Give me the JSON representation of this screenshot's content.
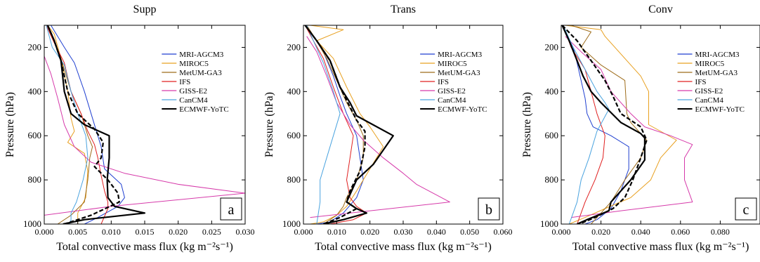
{
  "figure": {
    "panels": [
      {
        "title": "Supp",
        "letter": "a"
      },
      {
        "title": "Trans",
        "letter": "b"
      },
      {
        "title": "Conv",
        "letter": "c"
      }
    ]
  },
  "chart_data": [
    {
      "type": "line",
      "title": "Supp",
      "panel_label": "a",
      "xlabel": "Total convective mass flux (kg m⁻²s⁻¹)",
      "ylabel": "Pressure (hPa)",
      "xlim": [
        0,
        0.03
      ],
      "ylim": [
        1000,
        100
      ],
      "x_ticks": [
        "0.000",
        "0.005",
        "0.010",
        "0.015",
        "0.020",
        "0.025",
        "0.030"
      ],
      "y_ticks": [
        "200",
        "400",
        "600",
        "800",
        "1000"
      ],
      "legend_position": "top-right",
      "series": [
        {
          "name": "MRI-AGCM3",
          "color": "#1f3fd0",
          "style": "solid",
          "x": [
            0.001,
            0.002,
            0.003,
            0.0045,
            0.006,
            0.007,
            0.0085,
            0.009,
            0.0115,
            0.012,
            0.011,
            0.008,
            0.006
          ],
          "y": [
            100,
            150,
            200,
            270,
            400,
            500,
            650,
            750,
            820,
            880,
            920,
            970,
            1000
          ]
        },
        {
          "name": "MIROC5",
          "color": "#e8a020",
          "style": "solid",
          "x": [
            0.0005,
            0.0015,
            0.0025,
            0.0035,
            0.004,
            0.0045,
            0.0035,
            0.006,
            0.0065,
            0.0062,
            0.005,
            0.005
          ],
          "y": [
            100,
            140,
            250,
            400,
            520,
            580,
            630,
            680,
            760,
            880,
            950,
            1000
          ]
        },
        {
          "name": "MetUM-GA3",
          "color": "#9e6c1a",
          "style": "solid",
          "x": [
            0.0005,
            0.0015,
            0.0025,
            0.004,
            0.0055,
            0.0065,
            0.0072,
            0.0068,
            0.0065,
            0.006,
            0.004,
            0.002
          ],
          "y": [
            100,
            170,
            250,
            400,
            500,
            600,
            650,
            700,
            800,
            900,
            960,
            1000
          ]
        },
        {
          "name": "IFS",
          "color": "#e02020",
          "style": "solid",
          "x": [
            0.0003,
            0.0015,
            0.003,
            0.004,
            0.0055,
            0.0065,
            0.0075,
            0.008,
            0.0085,
            0.009,
            0.0095,
            0.0095,
            0.009,
            0.0085
          ],
          "y": [
            100,
            180,
            270,
            400,
            500,
            580,
            640,
            700,
            780,
            850,
            900,
            930,
            965,
            1000
          ]
        },
        {
          "name": "GISS-E2",
          "color": "#d63aaa",
          "style": "solid",
          "x": [
            0.0,
            0.001,
            0.002,
            0.003,
            0.0045,
            0.007,
            0.012,
            0.02,
            0.03,
            0.01,
            0.0
          ],
          "y": [
            240,
            320,
            430,
            550,
            650,
            720,
            770,
            820,
            860,
            920,
            960
          ]
        },
        {
          "name": "CanCM4",
          "color": "#4aa3df",
          "style": "solid",
          "x": [
            0.0003,
            0.0012,
            0.003,
            0.004,
            0.005,
            0.0062,
            0.0065,
            0.0058,
            0.0048,
            0.004,
            0.004,
            0.0038
          ],
          "y": [
            100,
            200,
            280,
            400,
            500,
            600,
            700,
            800,
            900,
            950,
            980,
            1000
          ]
        },
        {
          "name": "ECMWF-YoTC",
          "color": "#000000",
          "style": "solid",
          "x": [
            0.0005,
            0.0015,
            0.0025,
            0.003,
            0.004,
            0.006,
            0.0097,
            0.0097,
            0.0094,
            0.0095,
            0.0105,
            0.015,
            0.006,
            0.0028
          ],
          "y": [
            100,
            170,
            260,
            400,
            500,
            550,
            600,
            700,
            800,
            880,
            920,
            950,
            980,
            1000
          ]
        },
        {
          "name": "",
          "color": "#000000",
          "style": "dash",
          "x": [
            0.0005,
            0.0015,
            0.0025,
            0.0035,
            0.005,
            0.0075,
            0.0088,
            0.0085,
            0.0075,
            0.0095,
            0.011,
            0.0112,
            0.007,
            0.003
          ],
          "y": [
            100,
            170,
            260,
            400,
            500,
            570,
            630,
            700,
            740,
            800,
            860,
            900,
            960,
            1000
          ]
        }
      ]
    },
    {
      "type": "line",
      "title": "Trans",
      "panel_label": "b",
      "xlabel": "Total convective mass flux (kg m⁻²s⁻¹)",
      "ylabel": "Pressure (hPa)",
      "xlim": [
        0,
        0.06
      ],
      "ylim": [
        1000,
        100
      ],
      "x_ticks": [
        "0.000",
        "0.010",
        "0.020",
        "0.030",
        "0.040",
        "0.050",
        "0.060"
      ],
      "y_ticks": [
        "200",
        "400",
        "600",
        "800",
        "1000"
      ],
      "legend_position": "top-right",
      "series": [
        {
          "name": "MRI-AGCM3",
          "color": "#1f3fd0",
          "style": "solid",
          "x": [
            0.0005,
            0.003,
            0.006,
            0.009,
            0.011,
            0.013,
            0.016,
            0.017,
            0.018,
            0.016,
            0.012,
            0.008,
            0.004
          ],
          "y": [
            100,
            150,
            220,
            330,
            420,
            500,
            600,
            700,
            800,
            880,
            950,
            990,
            1000
          ]
        },
        {
          "name": "MIROC5",
          "color": "#e8a020",
          "style": "solid",
          "x": [
            0.002,
            0.012,
            0.004,
            0.009,
            0.013,
            0.017,
            0.02,
            0.024,
            0.02,
            0.016,
            0.013,
            0.01,
            0.006,
            0.002
          ],
          "y": [
            100,
            120,
            170,
            250,
            380,
            500,
            560,
            650,
            750,
            850,
            920,
            960,
            990,
            1000
          ]
        },
        {
          "name": "MetUM-GA3",
          "color": "#9e6c1a",
          "style": "solid",
          "x": [
            0.001,
            0.004,
            0.007,
            0.01,
            0.013,
            0.016,
            0.018,
            0.018,
            0.016,
            0.013,
            0.012,
            0.01,
            0.006
          ],
          "y": [
            100,
            170,
            250,
            350,
            450,
            530,
            600,
            700,
            800,
            880,
            920,
            960,
            1000
          ]
        },
        {
          "name": "IFS",
          "color": "#e02020",
          "style": "solid",
          "x": [
            0.0005,
            0.003,
            0.006,
            0.009,
            0.012,
            0.015,
            0.014,
            0.013,
            0.014,
            0.016,
            0.019,
            0.015,
            0.008
          ],
          "y": [
            100,
            170,
            250,
            380,
            500,
            600,
            700,
            800,
            880,
            920,
            950,
            980,
            1000
          ]
        },
        {
          "name": "GISS-E2",
          "color": "#d63aaa",
          "style": "solid",
          "x": [
            0.001,
            0.004,
            0.007,
            0.01,
            0.014,
            0.018,
            0.024,
            0.03,
            0.034,
            0.044,
            0.02,
            0.002
          ],
          "y": [
            150,
            220,
            330,
            450,
            550,
            620,
            700,
            770,
            820,
            900,
            940,
            970
          ]
        },
        {
          "name": "CanCM4",
          "color": "#4aa3df",
          "style": "solid",
          "x": [
            0.001,
            0.003,
            0.006,
            0.009,
            0.011,
            0.009,
            0.007,
            0.005,
            0.005,
            0.004
          ],
          "y": [
            100,
            170,
            270,
            400,
            500,
            600,
            700,
            800,
            900,
            1000
          ]
        },
        {
          "name": "ECMWF-YoTC",
          "color": "#000000",
          "style": "solid",
          "x": [
            0.0005,
            0.004,
            0.008,
            0.011,
            0.014,
            0.016,
            0.027,
            0.021,
            0.016,
            0.013,
            0.016,
            0.019,
            0.012,
            0.006
          ],
          "y": [
            100,
            170,
            260,
            380,
            450,
            510,
            600,
            730,
            800,
            900,
            930,
            950,
            980,
            1000
          ]
        },
        {
          "name": "",
          "color": "#000000",
          "style": "dash",
          "x": [
            0.0005,
            0.004,
            0.008,
            0.011,
            0.014,
            0.016,
            0.0185,
            0.0185,
            0.017,
            0.014,
            0.013,
            0.016,
            0.011,
            0.006
          ],
          "y": [
            100,
            170,
            260,
            380,
            470,
            530,
            580,
            650,
            760,
            850,
            900,
            930,
            970,
            1000
          ]
        }
      ]
    },
    {
      "type": "line",
      "title": "Conv",
      "panel_label": "c",
      "xlabel": "Total convective mass flux (kg m⁻²s⁻¹)",
      "ylabel": "Pressure (hPa)",
      "xlim": [
        0,
        0.1
      ],
      "ylim": [
        1000,
        100
      ],
      "x_ticks": [
        "0.000",
        "0.020",
        "0.040",
        "0.060",
        "0.080"
      ],
      "y_ticks": [
        "200",
        "400",
        "600",
        "800",
        "1000"
      ],
      "legend_position": "top-right",
      "series": [
        {
          "name": "MRI-AGCM3",
          "color": "#1f3fd0",
          "style": "solid",
          "x": [
            0.0005,
            0.003,
            0.006,
            0.008,
            0.01,
            0.012,
            0.013,
            0.016,
            0.025,
            0.034,
            0.034,
            0.03,
            0.025,
            0.018,
            0.012
          ],
          "y": [
            100,
            150,
            200,
            270,
            350,
            430,
            500,
            560,
            600,
            650,
            750,
            850,
            930,
            980,
            1000
          ]
        },
        {
          "name": "MIROC5",
          "color": "#e8a020",
          "style": "solid",
          "x": [
            0.002,
            0.02,
            0.022,
            0.033,
            0.04,
            0.044,
            0.044,
            0.058,
            0.05,
            0.045,
            0.035,
            0.022,
            0.012,
            0.004
          ],
          "y": [
            100,
            120,
            150,
            260,
            330,
            400,
            550,
            620,
            700,
            800,
            880,
            930,
            970,
            1000
          ]
        },
        {
          "name": "MetUM-GA3",
          "color": "#9e6c1a",
          "style": "solid",
          "x": [
            0.005,
            0.015,
            0.01,
            0.02,
            0.032,
            0.033,
            0.035,
            0.043,
            0.04,
            0.032,
            0.025,
            0.02,
            0.015
          ],
          "y": [
            100,
            130,
            200,
            280,
            350,
            500,
            540,
            620,
            700,
            800,
            900,
            950,
            1000
          ]
        },
        {
          "name": "IFS",
          "color": "#e02020",
          "style": "solid",
          "x": [
            0.001,
            0.005,
            0.012,
            0.015,
            0.018,
            0.02,
            0.022,
            0.021,
            0.017,
            0.012,
            0.01,
            0.008
          ],
          "y": [
            100,
            200,
            300,
            400,
            500,
            550,
            600,
            700,
            800,
            900,
            950,
            1000
          ]
        },
        {
          "name": "GISS-E2",
          "color": "#d63aaa",
          "style": "solid",
          "x": [
            0.002,
            0.01,
            0.02,
            0.025,
            0.035,
            0.042,
            0.055,
            0.066,
            0.062,
            0.062,
            0.066,
            0.03,
            0.005
          ],
          "y": [
            150,
            220,
            300,
            400,
            500,
            560,
            600,
            640,
            700,
            800,
            900,
            940,
            970
          ]
        },
        {
          "name": "CanCM4",
          "color": "#4aa3df",
          "style": "solid",
          "x": [
            0.001,
            0.006,
            0.012,
            0.018,
            0.022,
            0.024,
            0.018,
            0.014,
            0.01,
            0.008,
            0.006,
            0.004
          ],
          "y": [
            100,
            200,
            300,
            400,
            450,
            480,
            580,
            700,
            800,
            900,
            950,
            1000
          ]
        },
        {
          "name": "ECMWF-YoTC",
          "color": "#000000",
          "style": "solid",
          "x": [
            0.0005,
            0.004,
            0.008,
            0.011,
            0.015,
            0.02,
            0.03,
            0.04,
            0.042,
            0.042,
            0.035,
            0.025,
            0.024,
            0.013,
            0.008
          ],
          "y": [
            100,
            170,
            260,
            330,
            400,
            450,
            540,
            590,
            610,
            710,
            800,
            900,
            940,
            980,
            1000
          ]
        },
        {
          "name": "",
          "color": "#000000",
          "style": "dash",
          "x": [
            0.0005,
            0.008,
            0.015,
            0.022,
            0.026,
            0.03,
            0.04,
            0.043,
            0.04,
            0.036,
            0.032,
            0.026,
            0.017,
            0.009
          ],
          "y": [
            100,
            170,
            260,
            350,
            420,
            500,
            560,
            620,
            700,
            800,
            880,
            930,
            970,
            1000
          ]
        }
      ]
    }
  ]
}
